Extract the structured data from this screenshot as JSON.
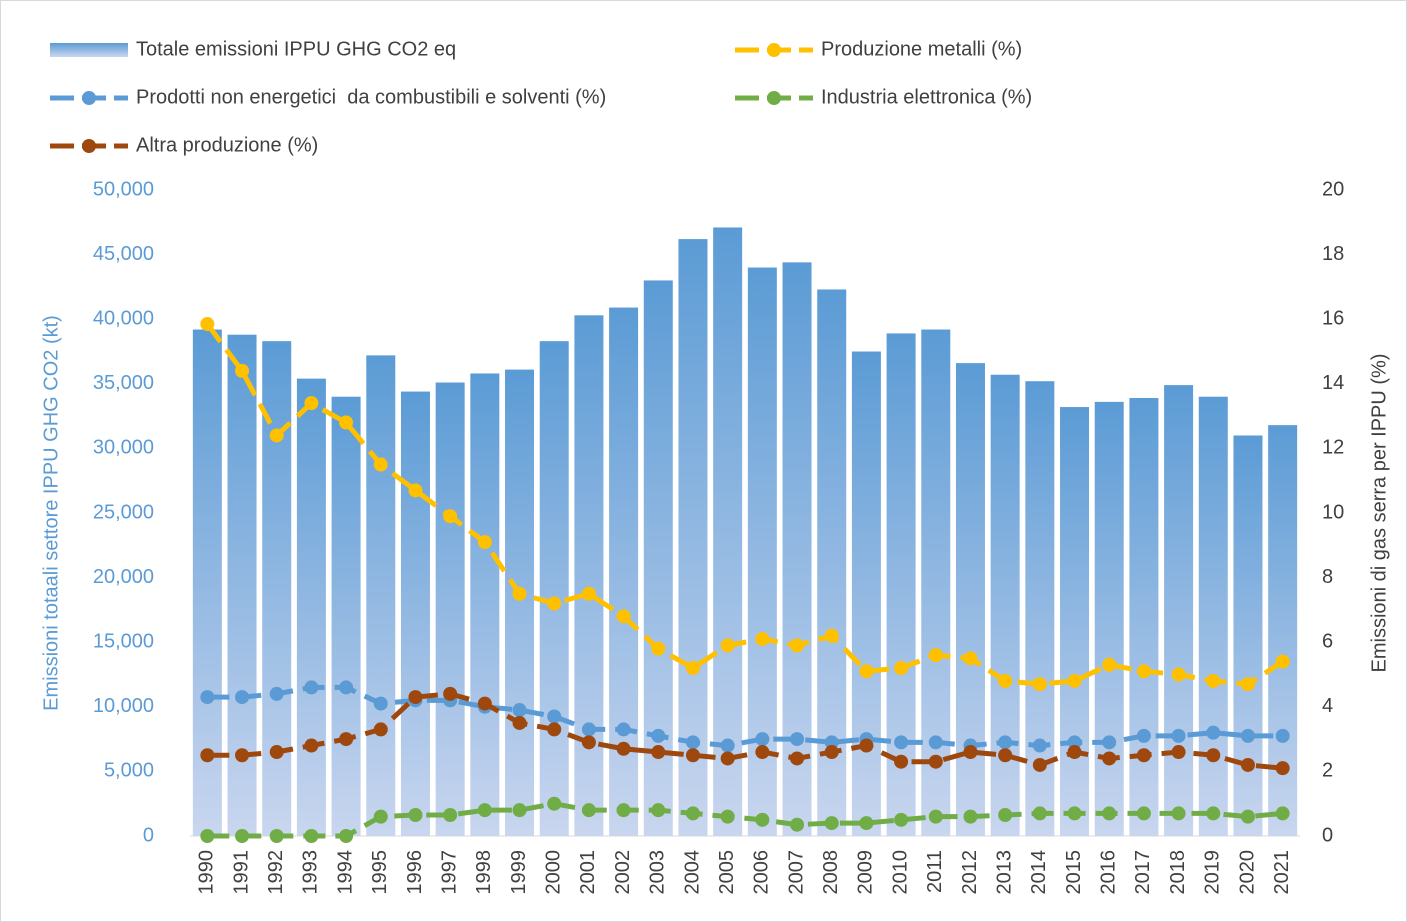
{
  "chart_data": {
    "type": "bar",
    "y_label": "Emissioni totaali settore IPPU GHG CO2 (kt)",
    "y2_label": "Emissioni di gas serra per IPPU (%)",
    "categories": [
      "1990",
      "1991",
      "1992",
      "1993",
      "1994",
      "1995",
      "1996",
      "1997",
      "1998",
      "1999",
      "2000",
      "2001",
      "2002",
      "2003",
      "2004",
      "2005",
      "2006",
      "2007",
      "2008",
      "2009",
      "2010",
      "2011",
      "2012",
      "2013",
      "2014",
      "2015",
      "2016",
      "2017",
      "2018",
      "2019",
      "2020",
      "2021"
    ],
    "ylim": [
      0,
      50000
    ],
    "yticks": [
      0,
      {
        "value": 5000,
        "label": "5,000"
      },
      {
        "value": 10000,
        "label": "10,000"
      },
      {
        "value": 15000,
        "label": "15,000"
      },
      {
        "value": 20000,
        "label": "20,000"
      },
      {
        "value": 25000,
        "label": "25,000"
      },
      {
        "value": 30000,
        "label": "30,000"
      },
      {
        "value": 35000,
        "label": "35,000"
      },
      {
        "value": 40000,
        "label": "40,000"
      },
      {
        "value": 45000,
        "label": "45,000"
      },
      {
        "value": 50000,
        "label": "50,000"
      }
    ],
    "y2lim": [
      0,
      20
    ],
    "y2ticks": [
      0,
      2,
      4,
      6,
      8,
      10,
      12,
      14,
      16,
      18,
      20
    ],
    "series": [
      {
        "name": "Totale emissioni IPPU GHG CO2 eq",
        "type": "bar",
        "color": "#5b9bd5",
        "values": [
          39200,
          38800,
          38300,
          35400,
          34000,
          37200,
          34400,
          35100,
          35800,
          36100,
          38300,
          40300,
          40900,
          43000,
          46200,
          47100,
          44000,
          44400,
          42300,
          37500,
          38900,
          39200,
          36600,
          35700,
          35200,
          33200,
          33600,
          33900,
          34900,
          34000,
          31000,
          31800
        ]
      },
      {
        "name": "Produzione metalli (%)",
        "type": "line",
        "axis": "y2",
        "color": "#ffc000",
        "values": [
          15.85,
          14.4,
          12.4,
          13.4,
          12.8,
          11.5,
          10.7,
          9.9,
          9.1,
          7.5,
          7.2,
          7.5,
          6.8,
          5.8,
          5.2,
          5.9,
          6.1,
          5.9,
          6.2,
          5.1,
          5.2,
          5.6,
          5.5,
          4.8,
          4.7,
          4.8,
          5.3,
          5.1,
          5.0,
          4.8,
          4.7,
          5.4
        ]
      },
      {
        "name": "Prodotti non energetici  da combustibili e solventi (%)",
        "type": "line",
        "axis": "y2",
        "color": "#5b9bd5",
        "values": [
          4.3,
          4.3,
          4.4,
          4.6,
          4.6,
          4.1,
          4.2,
          4.2,
          4.0,
          3.9,
          3.7,
          3.3,
          3.3,
          3.1,
          2.9,
          2.8,
          3.0,
          3.0,
          2.9,
          3.0,
          2.9,
          2.9,
          2.8,
          2.9,
          2.8,
          2.9,
          2.9,
          3.1,
          3.1,
          3.2,
          3.1,
          3.1
        ]
      },
      {
        "name": "Industria elettronica (%)",
        "type": "line",
        "axis": "y2",
        "color": "#70ad47",
        "values": [
          0,
          0,
          0,
          0,
          0,
          0.6,
          0.65,
          0.65,
          0.8,
          0.8,
          1.0,
          0.8,
          0.8,
          0.8,
          0.7,
          0.6,
          0.5,
          0.35,
          0.4,
          0.4,
          0.5,
          0.6,
          0.6,
          0.65,
          0.7,
          0.7,
          0.7,
          0.7,
          0.7,
          0.7,
          0.6,
          0.7
        ]
      },
      {
        "name": "Altra produzione (%)",
        "type": "line",
        "axis": "y2",
        "color": "#9e480e",
        "values": [
          2.5,
          2.5,
          2.6,
          2.8,
          3.0,
          3.3,
          4.3,
          4.4,
          4.1,
          3.5,
          3.3,
          2.9,
          2.7,
          2.6,
          2.5,
          2.4,
          2.6,
          2.4,
          2.6,
          2.8,
          2.3,
          2.3,
          2.6,
          2.5,
          2.2,
          2.6,
          2.4,
          2.5,
          2.6,
          2.5,
          2.2,
          2.1
        ]
      }
    ]
  }
}
